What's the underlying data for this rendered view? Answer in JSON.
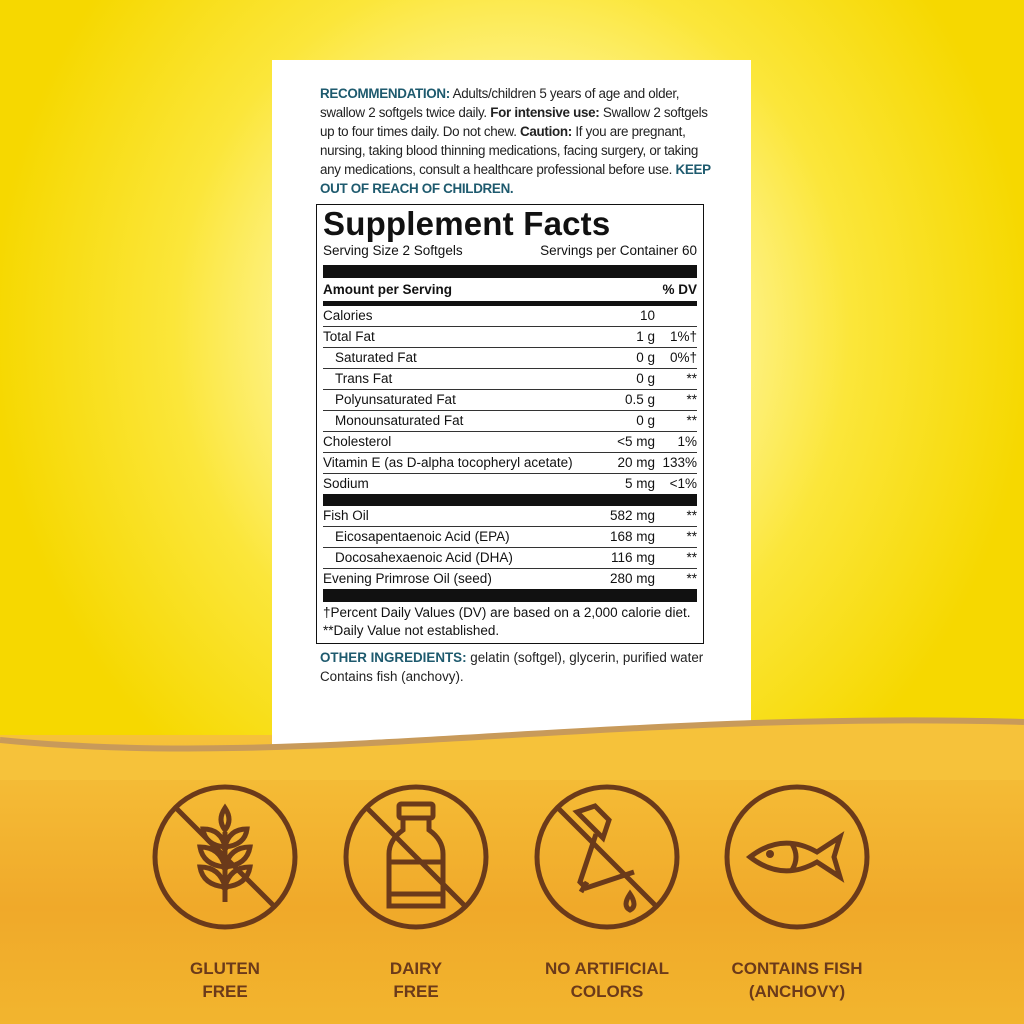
{
  "recommendation": {
    "label": "RECOMMENDATION:",
    "text1": " Adults/children 5 years of age and older, swallow 2 softgels twice daily. ",
    "intensive_label": "For intensive use:",
    "text2": " Swallow 2 softgels up to four times daily. Do not chew. ",
    "caution_label": "Caution:",
    "text3": " If you are pregnant, nursing, taking blood thinning medications, facing surgery, or taking any medications, consult a healthcare professional before use. ",
    "keep": "KEEP OUT OF REACH OF CHILDREN."
  },
  "facts": {
    "title": "Supplement Facts",
    "serving_size": "Serving Size 2 Softgels",
    "servings_per": "Servings per Container 60",
    "amount_header": "Amount per Serving",
    "dv_header": "% DV",
    "rows1": [
      {
        "name": "Calories",
        "amount": "10",
        "dv": "",
        "indent": false
      },
      {
        "name": "Total Fat",
        "amount": "1 g",
        "dv": "1%†",
        "indent": false
      },
      {
        "name": "Saturated Fat",
        "amount": "0 g",
        "dv": "0%†",
        "indent": true
      },
      {
        "name": "Trans Fat",
        "amount": "0 g",
        "dv": "**",
        "indent": true
      },
      {
        "name": "Polyunsaturated Fat",
        "amount": "0.5 g",
        "dv": "**",
        "indent": true
      },
      {
        "name": "Monounsaturated Fat",
        "amount": "0 g",
        "dv": "**",
        "indent": true
      },
      {
        "name": "Cholesterol",
        "amount": "<5 mg",
        "dv": "1%",
        "indent": false
      },
      {
        "name": "Vitamin E (as D-alpha tocopheryl acetate)",
        "amount": "20 mg",
        "dv": "133%",
        "indent": false
      },
      {
        "name": "Sodium",
        "amount": "5 mg",
        "dv": "<1%",
        "indent": false
      }
    ],
    "rows2": [
      {
        "name": "Fish Oil",
        "amount": "582 mg",
        "dv": "**",
        "indent": false
      },
      {
        "name": "Eicosapentaenoic Acid (EPA)",
        "amount": "168 mg",
        "dv": "**",
        "indent": true
      },
      {
        "name": "Docosahexaenoic Acid (DHA)",
        "amount": "116 mg",
        "dv": "**",
        "indent": true
      },
      {
        "name": "Evening Primrose Oil (seed)",
        "amount": "280 mg",
        "dv": "**",
        "indent": false
      }
    ],
    "footnote": "†Percent Daily Values (DV) are based on a 2,000 calorie diet. **Daily Value not established."
  },
  "other": {
    "label": "OTHER INGREDIENTS:",
    "text": " gelatin (softgel), glycerin, purified water",
    "contains": "Contains fish (anchovy)."
  },
  "badges": [
    {
      "icon": "wheat-icon",
      "line1": "GLUTEN",
      "line2": "FREE"
    },
    {
      "icon": "milk-bottle-icon",
      "line1": "DAIRY",
      "line2": "FREE"
    },
    {
      "icon": "dropper-icon",
      "line1": "NO ARTIFICIAL",
      "line2": "COLORS"
    },
    {
      "icon": "fish-icon",
      "line1": "CONTAINS FISH",
      "line2": "(ANCHOVY)"
    }
  ],
  "colors": {
    "brown": "#6b3a1a",
    "teal": "#1e5a6e",
    "yellow": "#f6d800",
    "orange": "#f0a92a"
  }
}
